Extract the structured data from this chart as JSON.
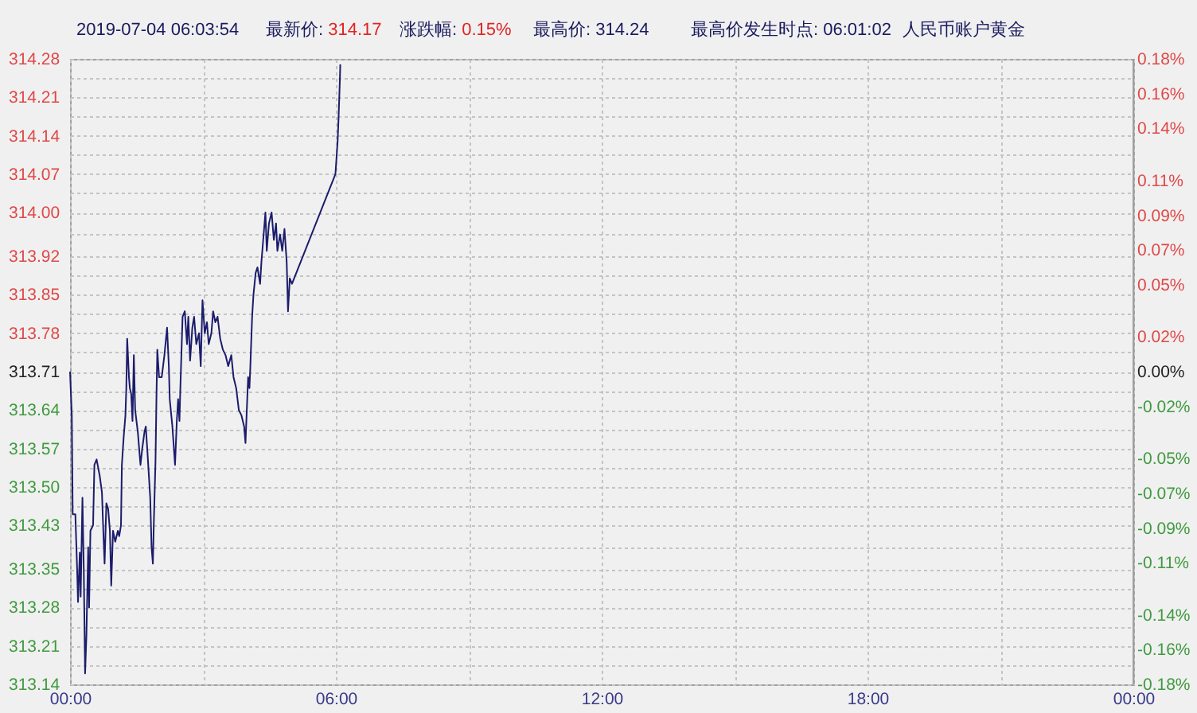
{
  "chart_data": {
    "type": "line",
    "title": "人民币账户黄金",
    "annotations": [
      "2019-07-04 06:03:54",
      "最新价: 314.17",
      "涨跌幅: 0.15%",
      "最高价: 314.24",
      "最高价发生时点: 06:01:02"
    ],
    "x": [
      0,
      0.04,
      0.06,
      0.12,
      0.16,
      0.18,
      0.22,
      0.24,
      0.28,
      0.31,
      0.34,
      0.37,
      0.41,
      0.43,
      0.46,
      0.52,
      0.55,
      0.6,
      0.67,
      0.72,
      0.76,
      0.78,
      0.82,
      0.86,
      0.9,
      0.93,
      0.97,
      1.02,
      1.08,
      1.11,
      1.15,
      1.17,
      1.21,
      1.25,
      1.27,
      1.29,
      1.33,
      1.35,
      1.38,
      1.41,
      1.44,
      1.47,
      1.53,
      1.59,
      1.63,
      1.68,
      1.71,
      1.75,
      1.81,
      1.84,
      1.87,
      1.89,
      1.93,
      1.95,
      1.97,
      2.01,
      2.07,
      2.13,
      2.19,
      2.23,
      2.25,
      2.31,
      2.37,
      2.41,
      2.44,
      2.47,
      2.49,
      2.54,
      2.59,
      2.64,
      2.67,
      2.71,
      2.76,
      2.8,
      2.85,
      2.91,
      2.95,
      2.99,
      3.04,
      3.09,
      3.13,
      3.19,
      3.23,
      3.28,
      3.33,
      3.39,
      3.45,
      3.51,
      3.57,
      3.64,
      3.69,
      3.75,
      3.81,
      3.87,
      3.93,
      3.96,
      3.99,
      4.02,
      4.05,
      4.07,
      4.11,
      4.14,
      4.19,
      4.23,
      4.29,
      4.32,
      4.36,
      4.41,
      4.44,
      4.49,
      4.55,
      4.6,
      4.65,
      4.68,
      4.74,
      4.79,
      4.84,
      4.89,
      4.92,
      4.96,
      5.01,
      5.99,
      6.04,
      6.06,
      6.09,
      6.1
    ],
    "series": [
      {
        "color": "#1c1c6c",
        "values": [
          313.71,
          313.63,
          313.45,
          313.45,
          313.35,
          313.29,
          313.38,
          313.3,
          313.48,
          313.35,
          313.16,
          313.23,
          313.39,
          313.28,
          313.42,
          313.43,
          313.54,
          313.55,
          313.52,
          313.49,
          313.4,
          313.36,
          313.47,
          313.46,
          313.42,
          313.32,
          313.42,
          313.4,
          313.42,
          313.41,
          313.43,
          313.54,
          313.59,
          313.63,
          313.68,
          313.77,
          313.7,
          313.68,
          313.67,
          313.62,
          313.74,
          313.64,
          313.6,
          313.54,
          313.57,
          313.6,
          313.61,
          313.56,
          313.48,
          313.39,
          313.36,
          313.43,
          313.55,
          313.66,
          313.75,
          313.7,
          313.7,
          313.74,
          313.79,
          313.72,
          313.66,
          313.61,
          313.54,
          313.62,
          313.66,
          313.62,
          313.68,
          313.81,
          313.82,
          313.76,
          313.81,
          313.73,
          313.79,
          313.81,
          313.76,
          313.78,
          313.72,
          313.84,
          313.78,
          313.8,
          313.76,
          313.78,
          313.82,
          313.8,
          313.81,
          313.77,
          313.75,
          313.74,
          313.72,
          313.74,
          313.7,
          313.68,
          313.64,
          313.63,
          313.61,
          313.58,
          313.64,
          313.7,
          313.68,
          313.72,
          313.81,
          313.85,
          313.89,
          313.9,
          313.87,
          313.91,
          313.95,
          314.0,
          313.93,
          313.98,
          314.0,
          313.95,
          313.98,
          313.93,
          313.96,
          313.93,
          313.97,
          313.91,
          313.82,
          313.88,
          313.87,
          314.07,
          314.13,
          314.17,
          314.24,
          314.27
        ]
      }
    ],
    "xlim": [
      0,
      24
    ],
    "xticks": [
      {
        "value": 0,
        "label": "00:00"
      },
      {
        "value": 3,
        "label": null
      },
      {
        "value": 6,
        "label": "06:00"
      },
      {
        "value": 9,
        "label": null
      },
      {
        "value": 12,
        "label": "12:00"
      },
      {
        "value": 15,
        "label": null
      },
      {
        "value": 18,
        "label": "18:00"
      },
      {
        "value": 21,
        "label": null
      },
      {
        "value": 24,
        "label": "00:00"
      }
    ],
    "ylim": [
      313.14,
      314.28
    ],
    "yticks": [
      313.14,
      {
        "value": 313.175,
        "label": null
      },
      313.21,
      {
        "value": 313.245,
        "label": null
      },
      313.28,
      {
        "value": 313.315,
        "label": null
      },
      313.35,
      {
        "value": 313.39,
        "label": null
      },
      313.43,
      {
        "value": 313.465,
        "label": null
      },
      {
        "value": 313.5,
        "label": "313.50"
      },
      {
        "value": 313.535,
        "label": null
      },
      313.57,
      {
        "value": 313.605,
        "label": null
      },
      313.64,
      {
        "value": 313.675,
        "label": null
      },
      313.71,
      {
        "value": 313.745,
        "label": null
      },
      313.78,
      {
        "value": 313.815,
        "label": null
      },
      313.85,
      {
        "value": 313.885,
        "label": null
      },
      313.92,
      {
        "value": 313.96,
        "label": null
      },
      {
        "value": 314.0,
        "label": "314.00"
      },
      {
        "value": 314.035,
        "label": null
      },
      314.07,
      {
        "value": 314.105,
        "label": null
      },
      314.14,
      {
        "value": 314.175,
        "label": null
      },
      314.21,
      {
        "value": 314.245,
        "label": null
      },
      314.28
    ],
    "y2lim": [
      -0.18,
      0.18
    ],
    "y2ticks": [
      {
        "value": 0.18,
        "label": "0.18%"
      },
      {
        "value": 0.16,
        "label": "0.16%"
      },
      {
        "value": 0.14,
        "label": "0.14%"
      },
      {
        "value": 0.11,
        "label": "0.11%"
      },
      {
        "value": 0.09,
        "label": "0.09%"
      },
      {
        "value": 0.07,
        "label": "0.07%"
      },
      {
        "value": 0.05,
        "label": "0.05%"
      },
      {
        "value": 0.02,
        "label": "0.02%"
      },
      {
        "value": 0,
        "label": "0.00%"
      },
      {
        "value": -0.02,
        "label": "-0.02%"
      },
      {
        "value": -0.05,
        "label": "-0.05%"
      },
      {
        "value": -0.07,
        "label": "-0.07%"
      },
      {
        "value": -0.09,
        "label": "-0.09%"
      },
      {
        "value": -0.11,
        "label": "-0.11%"
      },
      {
        "value": -0.14,
        "label": "-0.14%"
      },
      {
        "value": -0.16,
        "label": "-0.16%"
      },
      {
        "value": -0.18,
        "label": "-0.18%"
      }
    ],
    "grid": true,
    "line_style": "solid"
  }
}
